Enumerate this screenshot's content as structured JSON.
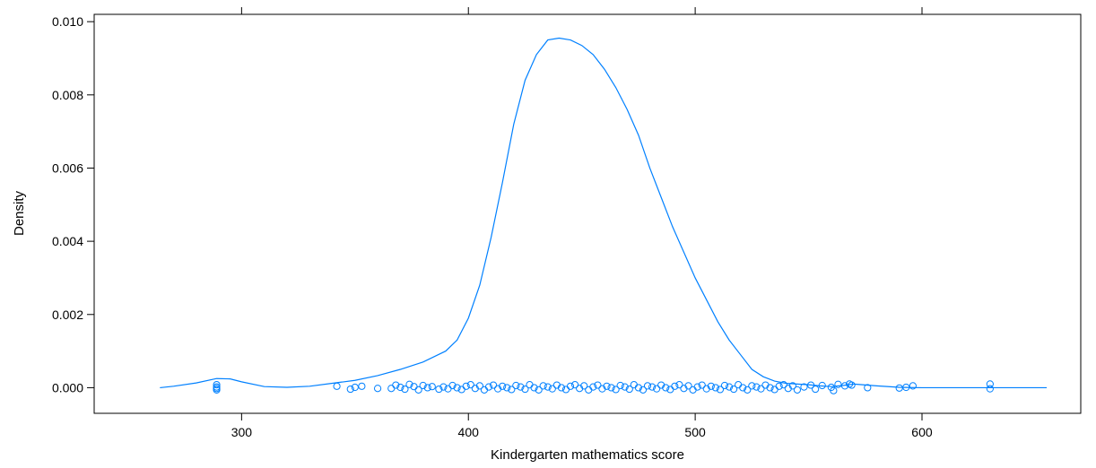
{
  "chart_data": {
    "type": "line",
    "title": "",
    "xlabel": "Kindergarten mathematics score",
    "ylabel": "Density",
    "xlim": [
      235,
      670
    ],
    "ylim": [
      -0.0007,
      0.0102
    ],
    "x_ticks": [
      300,
      400,
      500,
      600
    ],
    "x_tick_labels": [
      "300",
      "400",
      "500",
      "600"
    ],
    "y_ticks": [
      0.0,
      0.002,
      0.004,
      0.006,
      0.008,
      0.01
    ],
    "y_tick_labels": [
      "0.000",
      "0.002",
      "0.004",
      "0.006",
      "0.008",
      "0.010"
    ],
    "grid": false,
    "legend": "none",
    "line_color": "#0080ff",
    "series": [
      {
        "x": [
          264,
          270,
          280,
          289,
          295,
          300,
          310,
          320,
          330,
          340,
          350,
          360,
          370,
          380,
          385,
          390,
          395,
          400,
          405,
          410,
          415,
          420,
          425,
          430,
          435,
          440,
          445,
          450,
          455,
          460,
          465,
          470,
          475,
          480,
          485,
          490,
          495,
          500,
          505,
          510,
          515,
          520,
          525,
          530,
          535,
          540,
          545,
          550,
          555,
          560,
          565,
          570,
          580,
          590,
          600,
          610,
          620,
          630,
          640,
          655
        ],
        "y": [
          0.0,
          4e-05,
          0.00013,
          0.00025,
          0.00024,
          0.00016,
          3e-05,
          1e-05,
          4e-05,
          0.00012,
          0.0002,
          0.00033,
          0.0005,
          0.0007,
          0.00085,
          0.001,
          0.0013,
          0.0019,
          0.0028,
          0.0041,
          0.0056,
          0.0072,
          0.0084,
          0.0091,
          0.0095,
          0.00955,
          0.0095,
          0.00935,
          0.0091,
          0.0087,
          0.0082,
          0.0076,
          0.0069,
          0.006,
          0.0052,
          0.0044,
          0.0037,
          0.003,
          0.0024,
          0.0018,
          0.0013,
          0.0009,
          0.0005,
          0.0003,
          0.00018,
          0.00012,
          0.0001,
          8e-05,
          5e-05,
          3e-05,
          6e-05,
          0.0001,
          5e-05,
          1e-05,
          0.0,
          0.0,
          0.0,
          0.0,
          0.0,
          0.0
        ]
      }
    ],
    "rug_points": [
      [
        289,
        8e-05
      ],
      [
        289,
        2e-05
      ],
      [
        289,
        -2e-05
      ],
      [
        289,
        -6e-05
      ],
      [
        342,
        4e-05
      ],
      [
        348,
        -4e-05
      ],
      [
        350,
        1e-05
      ],
      [
        353,
        4e-05
      ],
      [
        360,
        -2e-05
      ],
      [
        366,
        -2e-05
      ],
      [
        368,
        7e-05
      ],
      [
        370,
        1e-05
      ],
      [
        372,
        -4e-05
      ],
      [
        374,
        9e-05
      ],
      [
        376,
        3e-05
      ],
      [
        378,
        -6e-05
      ],
      [
        380,
        6e-05
      ],
      [
        382,
        0.0
      ],
      [
        384,
        3e-05
      ],
      [
        387,
        -4e-05
      ],
      [
        389,
        2e-05
      ],
      [
        391,
        -3e-05
      ],
      [
        393,
        6e-05
      ],
      [
        395,
        0.0
      ],
      [
        397,
        -5e-05
      ],
      [
        399,
        4e-05
      ],
      [
        401,
        8e-05
      ],
      [
        403,
        -2e-05
      ],
      [
        405,
        5e-05
      ],
      [
        407,
        -6e-05
      ],
      [
        409,
        2e-05
      ],
      [
        411,
        7e-05
      ],
      [
        413,
        -3e-05
      ],
      [
        415,
        4e-05
      ],
      [
        417,
        0.0
      ],
      [
        419,
        -5e-05
      ],
      [
        421,
        6e-05
      ],
      [
        423,
        2e-05
      ],
      [
        425,
        -4e-05
      ],
      [
        427,
        8e-05
      ],
      [
        429,
        0.0
      ],
      [
        431,
        -6e-05
      ],
      [
        433,
        5e-05
      ],
      [
        435,
        2e-05
      ],
      [
        437,
        -3e-05
      ],
      [
        439,
        7e-05
      ],
      [
        441,
        0.0
      ],
      [
        443,
        -5e-05
      ],
      [
        445,
        4e-05
      ],
      [
        447,
        8e-05
      ],
      [
        449,
        -2e-05
      ],
      [
        451,
        5e-05
      ],
      [
        453,
        -6e-05
      ],
      [
        455,
        2e-05
      ],
      [
        457,
        7e-05
      ],
      [
        459,
        -3e-05
      ],
      [
        461,
        4e-05
      ],
      [
        463,
        0.0
      ],
      [
        465,
        -5e-05
      ],
      [
        467,
        6e-05
      ],
      [
        469,
        2e-05
      ],
      [
        471,
        -4e-05
      ],
      [
        473,
        8e-05
      ],
      [
        475,
        0.0
      ],
      [
        477,
        -6e-05
      ],
      [
        479,
        5e-05
      ],
      [
        481,
        2e-05
      ],
      [
        483,
        -3e-05
      ],
      [
        485,
        7e-05
      ],
      [
        487,
        0.0
      ],
      [
        489,
        -5e-05
      ],
      [
        491,
        4e-05
      ],
      [
        493,
        8e-05
      ],
      [
        495,
        -2e-05
      ],
      [
        497,
        5e-05
      ],
      [
        499,
        -6e-05
      ],
      [
        501,
        2e-05
      ],
      [
        503,
        7e-05
      ],
      [
        505,
        -3e-05
      ],
      [
        507,
        4e-05
      ],
      [
        509,
        0.0
      ],
      [
        511,
        -5e-05
      ],
      [
        513,
        6e-05
      ],
      [
        515,
        2e-05
      ],
      [
        517,
        -4e-05
      ],
      [
        519,
        8e-05
      ],
      [
        521,
        0.0
      ],
      [
        523,
        -6e-05
      ],
      [
        525,
        5e-05
      ],
      [
        527,
        2e-05
      ],
      [
        529,
        -3e-05
      ],
      [
        531,
        7e-05
      ],
      [
        533,
        0.0
      ],
      [
        535,
        -5e-05
      ],
      [
        537,
        4e-05
      ],
      [
        539,
        8e-05
      ],
      [
        541,
        -2e-05
      ],
      [
        543,
        5e-05
      ],
      [
        545,
        -6e-05
      ],
      [
        548,
        2e-05
      ],
      [
        551,
        7e-05
      ],
      [
        553,
        -4e-05
      ],
      [
        556,
        6e-05
      ],
      [
        560,
        1e-05
      ],
      [
        561,
        -8e-05
      ],
      [
        563,
        9e-05
      ],
      [
        566,
        5e-05
      ],
      [
        568,
        0.0001
      ],
      [
        569,
        7e-05
      ],
      [
        576,
        0.0
      ],
      [
        590,
        -1e-05
      ],
      [
        593,
        1e-05
      ],
      [
        596,
        5e-05
      ],
      [
        630,
        0.0001
      ],
      [
        630,
        -3e-05
      ]
    ]
  }
}
